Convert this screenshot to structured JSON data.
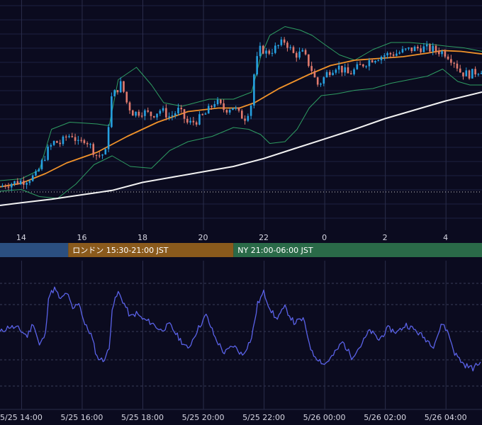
{
  "chart_data": [
    {
      "type": "candlestick",
      "x_ticks": [
        "14",
        "16",
        "18",
        "20",
        "22",
        "0",
        "2",
        "4"
      ],
      "x_range_hours": [
        13.3,
        29.2
      ],
      "overlays": [
        "Bollinger Bands",
        "short moving average",
        "long moving average"
      ],
      "colors": {
        "up": "#26a0e0",
        "down": "#e07a6e",
        "bands": "#2e9c62",
        "short_ma": "#f0922a",
        "long_ma": "#f2f2f2",
        "dotted_line": "#c8c8c8"
      },
      "close": [
        [
          13.3,
          1.05
        ],
        [
          13.5,
          1.2
        ],
        [
          13.8,
          1.3
        ],
        [
          14.1,
          1.4
        ],
        [
          14.3,
          1.55
        ],
        [
          14.5,
          1.7
        ],
        [
          14.7,
          2.5
        ],
        [
          14.9,
          3.2
        ],
        [
          15.1,
          3.6
        ],
        [
          15.3,
          3.5
        ],
        [
          15.5,
          3.9
        ],
        [
          15.7,
          4.0
        ],
        [
          15.9,
          3.4
        ],
        [
          16.1,
          3.8
        ],
        [
          16.3,
          3.3
        ],
        [
          16.5,
          2.8
        ],
        [
          16.7,
          2.9
        ],
        [
          16.8,
          3.0
        ],
        [
          16.95,
          6.0
        ],
        [
          17.1,
          6.4
        ],
        [
          17.3,
          6.9
        ],
        [
          17.5,
          5.7
        ],
        [
          17.7,
          5.2
        ],
        [
          18.0,
          5.3
        ],
        [
          18.3,
          5.1
        ],
        [
          18.6,
          5.4
        ],
        [
          18.9,
          5.0
        ],
        [
          19.2,
          5.4
        ],
        [
          19.5,
          4.6
        ],
        [
          19.8,
          4.8
        ],
        [
          20.1,
          5.2
        ],
        [
          20.4,
          5.9
        ],
        [
          20.7,
          5.4
        ],
        [
          21.0,
          5.6
        ],
        [
          21.2,
          5.1
        ],
        [
          21.4,
          4.95
        ],
        [
          21.6,
          5.8
        ],
        [
          21.7,
          7.8
        ],
        [
          21.9,
          8.9
        ],
        [
          22.1,
          8.6
        ],
        [
          22.4,
          8.9
        ],
        [
          22.7,
          9.3
        ],
        [
          23.0,
          8.5
        ],
        [
          23.3,
          8.6
        ],
        [
          23.6,
          7.6
        ],
        [
          23.75,
          6.8
        ],
        [
          23.9,
          7.0
        ],
        [
          24.1,
          7.5
        ],
        [
          24.4,
          7.9
        ],
        [
          24.8,
          7.4
        ],
        [
          25.2,
          7.9
        ],
        [
          25.6,
          8.3
        ],
        [
          26.0,
          8.5
        ],
        [
          26.4,
          8.6
        ],
        [
          26.8,
          8.8
        ],
        [
          27.2,
          8.9
        ],
        [
          27.6,
          8.8
        ],
        [
          28.0,
          8.6
        ],
        [
          28.3,
          8.1
        ],
        [
          28.5,
          7.5
        ],
        [
          28.8,
          7.4
        ],
        [
          29.2,
          7.7
        ]
      ],
      "short_ma": [
        [
          13.3,
          1.05
        ],
        [
          14.0,
          1.25
        ],
        [
          14.8,
          1.8
        ],
        [
          15.5,
          2.4
        ],
        [
          16.5,
          3.0
        ],
        [
          17.5,
          3.9
        ],
        [
          18.5,
          4.7
        ],
        [
          19.5,
          5.3
        ],
        [
          20.5,
          5.5
        ],
        [
          21.2,
          5.5
        ],
        [
          21.7,
          5.8
        ],
        [
          22.5,
          6.6
        ],
        [
          23.5,
          7.4
        ],
        [
          24.2,
          7.9
        ],
        [
          25.0,
          8.2
        ],
        [
          25.8,
          8.3
        ],
        [
          26.6,
          8.4
        ],
        [
          27.4,
          8.6
        ],
        [
          27.9,
          8.75
        ],
        [
          28.5,
          8.7
        ],
        [
          29.2,
          8.55
        ]
      ],
      "upper_band": [
        [
          13.3,
          1.4
        ],
        [
          14.0,
          1.5
        ],
        [
          14.6,
          2.0
        ],
        [
          15.0,
          4.3
        ],
        [
          15.6,
          4.7
        ],
        [
          16.5,
          4.6
        ],
        [
          16.9,
          4.5
        ],
        [
          17.2,
          7.1
        ],
        [
          17.8,
          7.8
        ],
        [
          18.3,
          6.8
        ],
        [
          18.7,
          5.8
        ],
        [
          19.3,
          5.6
        ],
        [
          20.2,
          6.0
        ],
        [
          21.0,
          6.0
        ],
        [
          21.6,
          6.4
        ],
        [
          21.9,
          8.4
        ],
        [
          22.2,
          9.6
        ],
        [
          22.7,
          10.1
        ],
        [
          23.2,
          9.9
        ],
        [
          23.6,
          9.6
        ],
        [
          24.0,
          9.1
        ],
        [
          24.5,
          8.5
        ],
        [
          25.0,
          8.2
        ],
        [
          25.6,
          8.8
        ],
        [
          26.2,
          9.2
        ],
        [
          26.8,
          9.2
        ],
        [
          27.5,
          9.1
        ],
        [
          28.0,
          9.0
        ],
        [
          28.6,
          8.9
        ],
        [
          29.2,
          8.7
        ]
      ],
      "lower_band": [
        [
          13.3,
          0.8
        ],
        [
          14.0,
          0.9
        ],
        [
          14.6,
          0.5
        ],
        [
          15.2,
          0.4
        ],
        [
          15.8,
          1.2
        ],
        [
          16.4,
          2.3
        ],
        [
          17.0,
          2.8
        ],
        [
          17.6,
          2.2
        ],
        [
          18.3,
          2.1
        ],
        [
          18.9,
          3.1
        ],
        [
          19.5,
          3.6
        ],
        [
          20.3,
          3.9
        ],
        [
          21.0,
          4.4
        ],
        [
          21.5,
          4.3
        ],
        [
          21.9,
          4.0
        ],
        [
          22.2,
          3.5
        ],
        [
          22.7,
          3.6
        ],
        [
          23.1,
          4.3
        ],
        [
          23.5,
          5.5
        ],
        [
          23.9,
          6.2
        ],
        [
          24.4,
          6.3
        ],
        [
          25.0,
          6.5
        ],
        [
          25.6,
          6.6
        ],
        [
          26.2,
          6.9
        ],
        [
          26.8,
          7.1
        ],
        [
          27.4,
          7.3
        ],
        [
          27.9,
          7.7
        ],
        [
          28.4,
          7.0
        ],
        [
          28.8,
          6.8
        ],
        [
          29.2,
          6.8
        ]
      ],
      "long_ma": [
        [
          13.3,
          0.0
        ],
        [
          14.0,
          0.15
        ],
        [
          15.0,
          0.35
        ],
        [
          16.0,
          0.6
        ],
        [
          17.0,
          0.85
        ],
        [
          18.0,
          1.3
        ],
        [
          19.0,
          1.6
        ],
        [
          20.0,
          1.9
        ],
        [
          21.0,
          2.2
        ],
        [
          22.0,
          2.65
        ],
        [
          23.0,
          3.2
        ],
        [
          24.0,
          3.75
        ],
        [
          25.0,
          4.3
        ],
        [
          26.0,
          4.9
        ],
        [
          27.0,
          5.4
        ],
        [
          28.0,
          5.9
        ],
        [
          29.2,
          6.4
        ]
      ],
      "dotted_level": 0.6,
      "sessions": [
        {
          "label": "",
          "color": "#2b4f80"
        },
        {
          "label": "ロンドン 15:30-21:00 JST",
          "color": "#8a5a1c"
        },
        {
          "label": "NY 21:00-06:00 JST",
          "color": "#2a6a48"
        }
      ]
    },
    {
      "type": "line",
      "x_ticks": [
        "5/25 14:00",
        "5/25 16:00",
        "5/25 18:00",
        "5/25 20:00",
        "5/25 22:00",
        "5/26 00:00",
        "5/26 02:00",
        "5/26 04:00"
      ],
      "line_color": "#5a62e8",
      "series": [
        [
          13.3,
          59
        ],
        [
          13.6,
          62
        ],
        [
          13.9,
          61
        ],
        [
          14.2,
          57
        ],
        [
          14.4,
          64
        ],
        [
          14.6,
          52
        ],
        [
          14.8,
          58
        ],
        [
          14.9,
          78
        ],
        [
          15.1,
          82
        ],
        [
          15.3,
          76
        ],
        [
          15.5,
          80
        ],
        [
          15.7,
          71
        ],
        [
          15.9,
          75
        ],
        [
          16.1,
          63
        ],
        [
          16.3,
          58
        ],
        [
          16.5,
          46
        ],
        [
          16.7,
          44
        ],
        [
          16.9,
          50
        ],
        [
          17.0,
          72
        ],
        [
          17.2,
          80
        ],
        [
          17.4,
          74
        ],
        [
          17.6,
          67
        ],
        [
          17.8,
          69
        ],
        [
          18.0,
          66
        ],
        [
          18.3,
          64
        ],
        [
          18.6,
          60
        ],
        [
          18.9,
          63
        ],
        [
          19.2,
          56
        ],
        [
          19.5,
          50
        ],
        [
          19.8,
          60
        ],
        [
          20.1,
          68
        ],
        [
          20.4,
          56
        ],
        [
          20.7,
          48
        ],
        [
          21.0,
          52
        ],
        [
          21.3,
          47
        ],
        [
          21.6,
          56
        ],
        [
          21.8,
          74
        ],
        [
          22.0,
          80
        ],
        [
          22.2,
          72
        ],
        [
          22.4,
          66
        ],
        [
          22.7,
          72
        ],
        [
          23.0,
          64
        ],
        [
          23.3,
          66
        ],
        [
          23.6,
          48
        ],
        [
          23.8,
          45
        ],
        [
          24.0,
          42
        ],
        [
          24.3,
          47
        ],
        [
          24.6,
          54
        ],
        [
          24.9,
          46
        ],
        [
          25.2,
          52
        ],
        [
          25.5,
          60
        ],
        [
          25.8,
          55
        ],
        [
          26.1,
          61
        ],
        [
          26.4,
          59
        ],
        [
          26.7,
          63
        ],
        [
          27.0,
          60
        ],
        [
          27.3,
          56
        ],
        [
          27.6,
          52
        ],
        [
          27.9,
          64
        ],
        [
          28.1,
          58
        ],
        [
          28.3,
          48
        ],
        [
          28.6,
          42
        ],
        [
          28.9,
          40
        ],
        [
          29.2,
          44
        ]
      ]
    }
  ]
}
